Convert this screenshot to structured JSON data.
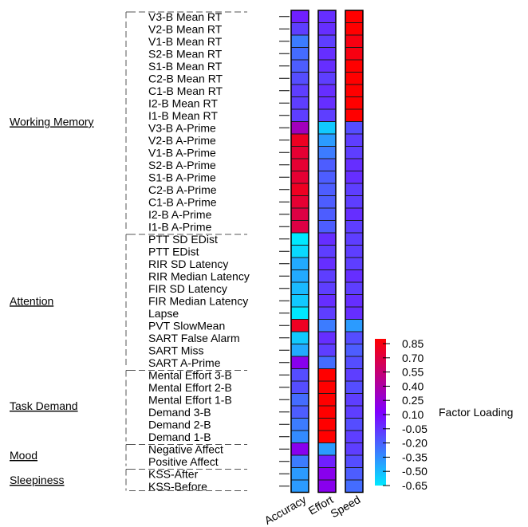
{
  "chart_data": {
    "type": "heatmap",
    "columns": [
      "Accuracy",
      "Effort",
      "Speed"
    ],
    "rows": [
      "V3-B Mean RT",
      "V2-B Mean RT",
      "V1-B Mean RT",
      "S2-B Mean RT",
      "S1-B Mean RT",
      "C2-B Mean RT",
      "C1-B Mean RT",
      "I2-B Mean RT",
      "I1-B Mean RT",
      "V3-B A-Prime",
      "V2-B A-Prime",
      "V1-B A-Prime",
      "S2-B A-Prime",
      "S1-B A-Prime",
      "C2-B A-Prime",
      "C1-B A-Prime",
      "I2-B A-Prime",
      "I1-B A-Prime",
      "PTT SD EDist",
      "PTT EDist",
      "RIR SD Latency",
      "RIR Median Latency",
      "FIR SD Latency",
      "FIR Median Latency",
      "Lapse",
      "PVT SlowMean",
      "SART False Alarm",
      "SART Miss",
      "SART A-Prime",
      "Mental Effort 3-B",
      "Mental Effort 2-B",
      "Mental Effort 1-B",
      "Demand 3-B",
      "Demand 2-B",
      "Demand 1-B",
      "Negative Affect",
      "Positive Affect",
      "KSS-After",
      "KSS-Before"
    ],
    "values": [
      [
        0.0,
        -0.05,
        0.85
      ],
      [
        -0.1,
        -0.05,
        0.85
      ],
      [
        -0.3,
        -0.1,
        0.8
      ],
      [
        -0.25,
        -0.05,
        0.8
      ],
      [
        -0.2,
        -0.05,
        0.85
      ],
      [
        -0.15,
        -0.1,
        0.85
      ],
      [
        -0.1,
        -0.05,
        0.85
      ],
      [
        -0.1,
        -0.05,
        0.9
      ],
      [
        -0.1,
        -0.1,
        0.85
      ],
      [
        0.3,
        -0.55,
        -0.15
      ],
      [
        0.75,
        -0.4,
        -0.1
      ],
      [
        0.7,
        -0.3,
        -0.1
      ],
      [
        0.7,
        -0.2,
        -0.05
      ],
      [
        0.7,
        -0.2,
        -0.05
      ],
      [
        0.75,
        -0.2,
        -0.1
      ],
      [
        0.7,
        -0.2,
        -0.1
      ],
      [
        0.65,
        -0.2,
        -0.05
      ],
      [
        0.65,
        -0.2,
        -0.1
      ],
      [
        -0.65,
        -0.05,
        -0.1
      ],
      [
        -0.6,
        -0.1,
        -0.1
      ],
      [
        -0.45,
        -0.05,
        -0.1
      ],
      [
        -0.45,
        -0.1,
        -0.05
      ],
      [
        -0.5,
        -0.1,
        -0.1
      ],
      [
        -0.55,
        -0.05,
        -0.05
      ],
      [
        -0.65,
        -0.1,
        -0.05
      ],
      [
        0.75,
        -0.3,
        -0.4
      ],
      [
        -0.55,
        -0.05,
        -0.15
      ],
      [
        -0.45,
        -0.1,
        -0.2
      ],
      [
        0.15,
        -0.25,
        -0.15
      ],
      [
        -0.15,
        0.95,
        -0.1
      ],
      [
        -0.15,
        0.95,
        -0.15
      ],
      [
        -0.25,
        0.95,
        -0.1
      ],
      [
        -0.2,
        0.9,
        -0.1
      ],
      [
        -0.3,
        0.95,
        -0.15
      ],
      [
        -0.35,
        0.95,
        -0.1
      ],
      [
        0.15,
        -0.4,
        -0.1
      ],
      [
        -0.3,
        0.0,
        -0.15
      ],
      [
        -0.4,
        0.15,
        -0.2
      ],
      [
        -0.4,
        0.15,
        -0.25
      ]
    ],
    "groups": [
      {
        "label": "Working Memory",
        "first_row": 0,
        "last_row": 17
      },
      {
        "label": "Attention",
        "first_row": 18,
        "last_row": 28
      },
      {
        "label": "Task Demand",
        "first_row": 29,
        "last_row": 34
      },
      {
        "label": "Mood",
        "first_row": 35,
        "last_row": 36
      },
      {
        "label": "Sleepiness",
        "first_row": 37,
        "last_row": 38
      }
    ],
    "colorbar": {
      "title": "Factor Loading",
      "ticks": [
        "0.85",
        "0.70",
        "0.55",
        "0.40",
        "0.25",
        "0.10",
        "-0.05",
        "-0.20",
        "-0.35",
        "-0.50",
        "-0.65"
      ],
      "range": [
        -0.65,
        0.85
      ],
      "colors": {
        "low": "#00e8ff",
        "middle": "#8000ff",
        "high": "#ff0000"
      }
    }
  }
}
